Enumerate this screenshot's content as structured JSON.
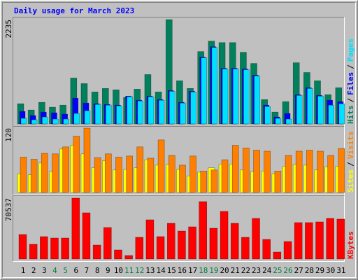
{
  "chart_data": [
    {
      "type": "bar",
      "title": "Daily usage for March 2023",
      "ylim": [
        0,
        2235
      ],
      "yticks": [
        2235
      ],
      "legend_separator": "/",
      "series": [
        {
          "name": "Hits",
          "color": "#00805c",
          "values": [
            432,
            298,
            462,
            358,
            402,
            983,
            864,
            685,
            760,
            730,
            566,
            745,
            1058,
            685,
            2235,
            924,
            760,
            1550,
            1773,
            1743,
            1743,
            1535,
            1296,
            521,
            253,
            477,
            1311,
            1102,
            924,
            626,
            775
          ]
        },
        {
          "name": "Files",
          "color": "#0000ff",
          "values": [
            268,
            179,
            253,
            238,
            209,
            551,
            447,
            432,
            417,
            402,
            596,
            507,
            596,
            521,
            715,
            462,
            700,
            1430,
            1654,
            1192,
            1192,
            1177,
            1043,
            402,
            149,
            224,
            626,
            775,
            611,
            507,
            477
          ]
        },
        {
          "name": "Pages",
          "color": "#00e0ff",
          "values": [
            119,
            89,
            149,
            104,
            104,
            224,
            283,
            417,
            402,
            387,
            581,
            492,
            581,
            507,
            700,
            447,
            685,
            1416,
            1639,
            1177,
            1177,
            1162,
            1028,
            373,
            119,
            104,
            611,
            760,
            596,
            402,
            432
          ]
        }
      ]
    },
    {
      "type": "bar",
      "ylim": [
        0,
        120
      ],
      "yticks": [
        120
      ],
      "legend_separator": "/",
      "series": [
        {
          "name": "Sites",
          "color": "#ffff00",
          "values": [
            35,
            33,
            55,
            39,
            81,
            88,
            72,
            46,
            59,
            42,
            43,
            46,
            61,
            51,
            52,
            43,
            31,
            38,
            46,
            53,
            53,
            42,
            39,
            40,
            35,
            49,
            52,
            51,
            42,
            48,
            49
          ]
        },
        {
          "name": "Visits",
          "color": "#ff8000",
          "values": [
            66,
            62,
            73,
            72,
            85,
            105,
            120,
            65,
            72,
            66,
            68,
            85,
            64,
            98,
            69,
            51,
            68,
            40,
            42,
            61,
            88,
            83,
            79,
            77,
            40,
            69,
            77,
            79,
            77,
            69,
            82
          ]
        }
      ]
    },
    {
      "type": "bar",
      "ylim": [
        0,
        70537
      ],
      "yticks": [
        70537
      ],
      "categories": [
        "1",
        "2",
        "3",
        "4",
        "5",
        "6",
        "7",
        "8",
        "9",
        "10",
        "11",
        "12",
        "13",
        "14",
        "15",
        "16",
        "17",
        "18",
        "19",
        "20",
        "21",
        "22",
        "23",
        "24",
        "25",
        "26",
        "27",
        "28",
        "29",
        "30",
        "31"
      ],
      "category_colors": [
        "#000000",
        "#000000",
        "#000000",
        "#008040",
        "#008040",
        "#000000",
        "#000000",
        "#000000",
        "#000000",
        "#000000",
        "#008040",
        "#008040",
        "#000000",
        "#000000",
        "#000000",
        "#000000",
        "#000000",
        "#008040",
        "#008040",
        "#000000",
        "#000000",
        "#000000",
        "#000000",
        "#000000",
        "#008040",
        "#008040",
        "#000000",
        "#000000",
        "#000000",
        "#000000",
        "#000000"
      ],
      "series": [
        {
          "name": "KBytes",
          "color": "#ff0000",
          "values": [
            28385,
            17030,
            25951,
            24329,
            24329,
            70537,
            53530,
            16219,
            36493,
            10542,
            4055,
            25140,
            45420,
            25951,
            41365,
            32438,
            37304,
            66482,
            35682,
            55151,
            41365,
            25140,
            47042,
            22707,
            8109,
            20273,
            42176,
            42176,
            42987,
            47042,
            46231
          ]
        }
      ]
    }
  ]
}
